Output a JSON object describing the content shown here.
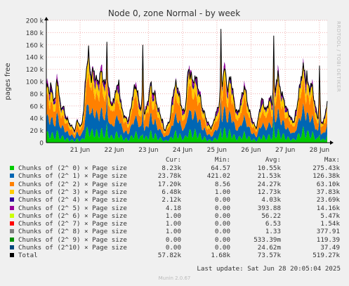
{
  "chart_data": {
    "type": "area",
    "title": "Node 0, zone Normal - by week",
    "ylabel": "pages free",
    "ylim": [
      0,
      200000
    ],
    "y_ticks": [
      "0",
      "20 k",
      "40 k",
      "60 k",
      "80 k",
      "100 k",
      "120 k",
      "140 k",
      "160 k",
      "180 k",
      "200 k"
    ],
    "x_ticks": [
      "21 Jun",
      "22 Jun",
      "23 Jun",
      "24 Jun",
      "25 Jun",
      "26 Jun",
      "27 Jun",
      "28 Jun"
    ],
    "grid": true,
    "stacked": true,
    "total_profile": [
      88,
      92,
      82,
      96,
      80,
      72,
      70,
      108,
      90,
      65,
      55,
      62,
      50,
      42,
      38,
      32,
      30,
      26,
      22,
      20,
      34,
      36,
      28,
      26,
      40,
      60,
      110,
      132,
      145,
      118,
      104,
      120,
      112,
      104,
      98,
      106,
      116,
      108,
      104,
      92,
      110,
      96,
      75,
      62,
      64,
      70,
      92,
      88,
      100,
      72,
      54,
      48,
      42,
      38,
      36,
      44,
      55,
      76,
      86,
      92,
      90,
      70,
      60,
      58,
      54,
      50,
      52,
      64,
      82,
      96,
      86,
      80,
      78,
      64,
      55,
      50,
      40,
      36,
      20,
      22,
      28,
      34,
      38,
      62,
      84,
      90,
      96,
      92,
      76,
      64,
      56,
      50,
      54,
      90,
      120,
      114,
      110,
      96,
      108,
      104,
      100,
      84,
      72,
      60,
      52,
      46,
      38,
      32,
      28,
      24,
      28,
      36,
      46,
      52,
      60,
      72,
      84,
      110,
      124,
      110,
      84,
      98,
      110,
      92,
      72,
      58,
      52,
      48,
      58,
      72,
      80,
      92,
      84,
      70,
      54,
      48,
      40,
      32,
      28,
      24,
      34,
      50,
      66,
      72,
      62,
      56,
      54,
      64,
      74,
      68,
      60,
      62,
      96,
      110,
      96,
      88,
      80,
      72,
      64,
      56,
      50,
      44,
      40,
      36,
      34,
      48,
      60,
      78,
      94,
      112,
      122,
      116,
      104,
      98,
      88,
      96,
      92,
      76,
      62,
      48,
      40,
      36,
      34,
      32,
      38,
      52,
      70
    ],
    "spikes": [
      {
        "x": "21 Jun 19:00",
        "value": 165000
      },
      {
        "x": "22 Jun 20:00",
        "value": 160000
      },
      {
        "x": "25 Jun 03:00",
        "value": 186000
      },
      {
        "x": "25 Jun 06:00",
        "value": 120000
      },
      {
        "x": "26 Jun 16:00",
        "value": 175000
      },
      {
        "x": "26 Jun 19:00",
        "value": 118000
      },
      {
        "x": "27 Jun 15:00",
        "value": 118000
      },
      {
        "x": "28 Jun 00:00",
        "value": 126000
      }
    ],
    "series": [
      {
        "name": "Chunks of (2^ 0) × Page size",
        "color": "#00cc00",
        "share": 0.14,
        "cur": "8.23k",
        "min": "64.57",
        "avg": "10.55k",
        "max": "275.43k"
      },
      {
        "name": "Chunks of (2^ 1) × Page size",
        "color": "#0066b3",
        "share": 0.29,
        "cur": "23.78k",
        "min": "421.02",
        "avg": "21.53k",
        "max": "126.38k"
      },
      {
        "name": "Chunks of (2^ 2) × Page size",
        "color": "#ff8000",
        "share": 0.33,
        "cur": "17.20k",
        "min": "8.56",
        "avg": "24.27k",
        "max": "63.10k"
      },
      {
        "name": "Chunks of (2^ 3) × Page size",
        "color": "#ffcc00",
        "share": 0.17,
        "cur": "6.48k",
        "min": "1.00",
        "avg": "12.73k",
        "max": "37.83k"
      },
      {
        "name": "Chunks of (2^ 4) × Page size",
        "color": "#330099",
        "share": 0.055,
        "cur": "2.12k",
        "min": "0.00",
        "avg": "4.03k",
        "max": "23.69k"
      },
      {
        "name": "Chunks of (2^ 5) × Page size",
        "color": "#990099",
        "share": 0.005,
        "cur": "4.18",
        "min": "0.00",
        "avg": "393.88",
        "max": "14.16k"
      },
      {
        "name": "Chunks of (2^ 6) × Page size",
        "color": "#ccff00",
        "share": 0.0,
        "cur": "1.00",
        "min": "0.00",
        "avg": "56.22",
        "max": "5.47k"
      },
      {
        "name": "Chunks of (2^ 7) × Page size",
        "color": "#ff0000",
        "share": 0.0,
        "cur": "1.00",
        "min": "0.00",
        "avg": "6.53",
        "max": "1.54k"
      },
      {
        "name": "Chunks of (2^ 8) × Page size",
        "color": "#808080",
        "share": 0.0,
        "cur": "1.00",
        "min": "0.00",
        "avg": "1.33",
        "max": "377.91"
      },
      {
        "name": "Chunks of (2^ 9) × Page size",
        "color": "#008f00",
        "share": 0.0,
        "cur": "0.00",
        "min": "0.00",
        "avg": "533.39m",
        "max": "119.39"
      },
      {
        "name": "Chunks of (2^10) × Page size",
        "color": "#00487d",
        "share": 0.0,
        "cur": "0.00",
        "min": "0.00",
        "avg": "24.62m",
        "max": "37.49"
      },
      {
        "name": "Total",
        "color": "#000000",
        "share": null,
        "cur": "57.82k",
        "min": "1.68k",
        "avg": "73.57k",
        "max": "519.27k"
      }
    ]
  },
  "legend_headers": {
    "cur": "Cur:",
    "min": "Min:",
    "avg": "Avg:",
    "max": "Max:"
  },
  "footer": {
    "last_update": "Last update: Sat Jun 28 20:05:04 2025",
    "generator": "Munin 2.0.67"
  },
  "side_label": "RRDTOOL / TOBI OETIKER"
}
